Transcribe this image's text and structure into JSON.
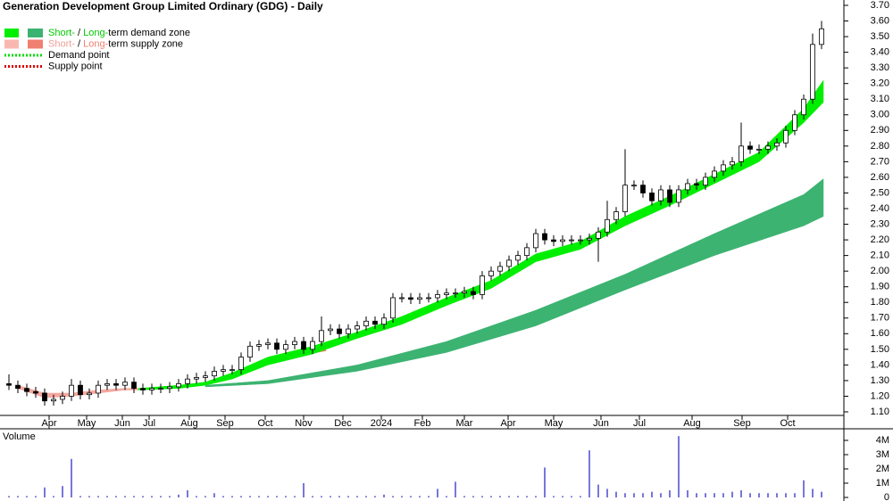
{
  "chart_data": [
    {
      "type": "candlestick",
      "title": "Generation Development Group Limited Ordinary (GDG) - Daily",
      "x": [
        1,
        2,
        3,
        4,
        5,
        6,
        7,
        8,
        9,
        10,
        11,
        12,
        13,
        14,
        15,
        16,
        17,
        18,
        19,
        20,
        21,
        22,
        23,
        24,
        25,
        26,
        27,
        28,
        29,
        30,
        31,
        32,
        33,
        34,
        35,
        36,
        37,
        38,
        39,
        40,
        41,
        42,
        43,
        44,
        45,
        46,
        47,
        48,
        49,
        50,
        51,
        52,
        53,
        54,
        55,
        56,
        57,
        58,
        59,
        60,
        61,
        62,
        63,
        64,
        65,
        66,
        67,
        68,
        69,
        70,
        71,
        72,
        73,
        74,
        75,
        76,
        77,
        78,
        79,
        80,
        81,
        82,
        83,
        84,
        85,
        86,
        87,
        88,
        89,
        90,
        91,
        92
      ],
      "open": [
        1.28,
        1.27,
        1.25,
        1.23,
        1.22,
        1.17,
        1.18,
        1.2,
        1.27,
        1.21,
        1.22,
        1.27,
        1.28,
        1.27,
        1.29,
        1.25,
        1.24,
        1.25,
        1.25,
        1.26,
        1.28,
        1.31,
        1.32,
        1.33,
        1.36,
        1.37,
        1.37,
        1.45,
        1.52,
        1.53,
        1.54,
        1.5,
        1.53,
        1.55,
        1.5,
        1.55,
        1.62,
        1.63,
        1.6,
        1.63,
        1.65,
        1.68,
        1.66,
        1.7,
        1.83,
        1.83,
        1.82,
        1.83,
        1.83,
        1.85,
        1.86,
        1.86,
        1.87,
        1.85,
        1.97,
        2.0,
        2.03,
        2.07,
        2.1,
        2.15,
        2.24,
        2.2,
        2.19,
        2.2,
        2.2,
        2.2,
        2.21,
        2.25,
        2.33,
        2.38,
        2.55,
        2.55,
        2.5,
        2.45,
        2.52,
        2.44,
        2.52,
        2.56,
        2.55,
        2.6,
        2.64,
        2.68,
        2.7,
        2.8,
        2.78,
        2.78,
        2.8,
        2.82,
        2.9,
        3.0,
        3.1,
        3.45
      ],
      "high": [
        1.34,
        1.3,
        1.28,
        1.26,
        1.25,
        1.21,
        1.23,
        1.31,
        1.3,
        1.25,
        1.3,
        1.31,
        1.31,
        1.32,
        1.32,
        1.28,
        1.28,
        1.28,
        1.29,
        1.31,
        1.34,
        1.35,
        1.36,
        1.39,
        1.4,
        1.4,
        1.48,
        1.55,
        1.56,
        1.57,
        1.57,
        1.56,
        1.58,
        1.58,
        1.58,
        1.71,
        1.66,
        1.66,
        1.66,
        1.68,
        1.71,
        1.71,
        1.73,
        1.86,
        1.86,
        1.86,
        1.86,
        1.86,
        1.88,
        1.89,
        1.89,
        1.9,
        1.9,
        2.0,
        2.03,
        2.06,
        2.1,
        2.13,
        2.18,
        2.27,
        2.27,
        2.23,
        2.23,
        2.23,
        2.23,
        2.24,
        2.28,
        2.45,
        2.41,
        2.78,
        2.58,
        2.58,
        2.53,
        2.55,
        2.55,
        2.55,
        2.59,
        2.59,
        2.63,
        2.67,
        2.71,
        2.73,
        2.95,
        2.83,
        2.81,
        2.83,
        2.85,
        2.93,
        3.03,
        3.13,
        3.52,
        3.6
      ],
      "low": [
        1.24,
        1.22,
        1.2,
        1.19,
        1.14,
        1.14,
        1.15,
        1.17,
        1.18,
        1.18,
        1.19,
        1.24,
        1.24,
        1.24,
        1.22,
        1.21,
        1.21,
        1.22,
        1.22,
        1.23,
        1.25,
        1.28,
        1.29,
        1.3,
        1.33,
        1.34,
        1.34,
        1.42,
        1.49,
        1.5,
        1.47,
        1.47,
        1.5,
        1.47,
        1.47,
        1.52,
        1.59,
        1.57,
        1.57,
        1.6,
        1.62,
        1.63,
        1.63,
        1.67,
        1.8,
        1.79,
        1.79,
        1.8,
        1.8,
        1.82,
        1.83,
        1.83,
        1.82,
        1.82,
        1.94,
        1.97,
        2.0,
        2.04,
        2.07,
        2.12,
        2.17,
        2.16,
        2.16,
        2.17,
        2.17,
        2.17,
        2.06,
        2.22,
        2.3,
        2.35,
        2.52,
        2.47,
        2.42,
        2.42,
        2.41,
        2.41,
        2.49,
        2.52,
        2.52,
        2.57,
        2.61,
        2.65,
        2.67,
        2.75,
        2.75,
        2.75,
        2.77,
        2.79,
        2.87,
        2.97,
        3.07,
        3.42
      ],
      "close": [
        1.27,
        1.25,
        1.23,
        1.22,
        1.17,
        1.18,
        1.2,
        1.27,
        1.21,
        1.22,
        1.27,
        1.28,
        1.27,
        1.29,
        1.25,
        1.24,
        1.25,
        1.25,
        1.26,
        1.28,
        1.31,
        1.32,
        1.33,
        1.36,
        1.37,
        1.37,
        1.45,
        1.52,
        1.53,
        1.54,
        1.5,
        1.53,
        1.55,
        1.5,
        1.55,
        1.62,
        1.63,
        1.6,
        1.63,
        1.65,
        1.68,
        1.66,
        1.7,
        1.83,
        1.83,
        1.82,
        1.83,
        1.83,
        1.85,
        1.86,
        1.86,
        1.87,
        1.85,
        1.97,
        2.0,
        2.03,
        2.07,
        2.1,
        2.15,
        2.24,
        2.2,
        2.19,
        2.2,
        2.2,
        2.2,
        2.21,
        2.25,
        2.33,
        2.38,
        2.55,
        2.55,
        2.5,
        2.45,
        2.52,
        2.44,
        2.52,
        2.56,
        2.55,
        2.6,
        2.64,
        2.68,
        2.7,
        2.8,
        2.78,
        2.78,
        2.8,
        2.82,
        2.9,
        3.0,
        3.1,
        3.45,
        3.55
      ],
      "up_color": "#ffffff",
      "down_color": "#000000",
      "bands": [
        {
          "color": "#f4a8a0",
          "x": [
            2,
            5,
            8,
            11,
            14,
            15.5
          ],
          "lower": [
            1.25,
            1.19,
            1.2,
            1.22,
            1.24,
            1.24
          ],
          "upper": [
            1.27,
            1.22,
            1.22,
            1.24,
            1.25,
            1.25
          ]
        },
        {
          "color": "#f08060",
          "x": [
            34.5,
            35.5,
            36.5
          ],
          "lower": [
            1.47,
            1.48,
            1.49
          ],
          "upper": [
            1.5,
            1.51,
            1.52
          ]
        },
        {
          "color": "#3cb371",
          "x": [
            23,
            30,
            40,
            50,
            60,
            70,
            80,
            90,
            92.2
          ],
          "lower": [
            1.26,
            1.28,
            1.36,
            1.48,
            1.65,
            1.88,
            2.1,
            2.29,
            2.35
          ],
          "upper": [
            1.27,
            1.3,
            1.4,
            1.55,
            1.75,
            1.98,
            2.24,
            2.49,
            2.59
          ]
        },
        {
          "color": "#00ee00",
          "x": [
            15.5,
            20,
            23,
            26,
            30,
            35,
            40,
            45,
            50,
            55,
            60,
            65,
            70,
            75,
            80,
            85,
            90,
            92.2
          ],
          "lower": [
            1.24,
            1.25,
            1.27,
            1.31,
            1.4,
            1.47,
            1.57,
            1.66,
            1.78,
            1.89,
            2.06,
            2.14,
            2.29,
            2.42,
            2.56,
            2.7,
            2.95,
            3.08
          ],
          "upper": [
            1.25,
            1.27,
            1.29,
            1.35,
            1.45,
            1.52,
            1.61,
            1.71,
            1.83,
            1.94,
            2.11,
            2.19,
            2.35,
            2.48,
            2.62,
            2.76,
            3.04,
            3.22
          ]
        }
      ],
      "legend": [
        {
          "colors": [
            "#00ee00",
            "#3cb371"
          ],
          "parts": [
            "Short-",
            " / ",
            "Long-",
            "term demand zone"
          ],
          "part_colors": [
            "#00cc00",
            "#000000",
            "#00cc00",
            "#000000"
          ]
        },
        {
          "colors": [
            "#f8b8b0",
            "#f08070"
          ],
          "parts": [
            "Short-",
            " / ",
            "Long-",
            "term supply zone"
          ],
          "part_colors": [
            "#f0a098",
            "#000000",
            "#f08070",
            "#000000"
          ]
        },
        {
          "line_color": "#00dd00",
          "parts": [
            "Demand point"
          ],
          "part_colors": [
            "#000000"
          ]
        },
        {
          "line_color": "#dd0000",
          "parts": [
            "Supply point"
          ],
          "part_colors": [
            "#000000"
          ]
        }
      ],
      "xlim": [
        0,
        94
      ],
      "xticks": [
        {
          "value": 5.5,
          "label": "Apr"
        },
        {
          "value": 9.7,
          "label": "May"
        },
        {
          "value": 13.7,
          "label": "Jun"
        },
        {
          "value": 16.7,
          "label": "Jul"
        },
        {
          "value": 21.2,
          "label": "Aug"
        },
        {
          "value": 25.2,
          "label": "Sep"
        },
        {
          "value": 29.7,
          "label": "Oct"
        },
        {
          "value": 34,
          "label": "Nov"
        },
        {
          "value": 38.4,
          "label": "Dec"
        },
        {
          "value": 42.7,
          "label": "2024"
        },
        {
          "value": 47.3,
          "label": "Feb"
        },
        {
          "value": 52,
          "label": "Mar"
        },
        {
          "value": 56.9,
          "label": "Apr"
        },
        {
          "value": 62,
          "label": "May"
        },
        {
          "value": 67.3,
          "label": "Jun"
        },
        {
          "value": 71.6,
          "label": "Jul"
        },
        {
          "value": 77.5,
          "label": "Aug"
        },
        {
          "value": 83.1,
          "label": "Sep"
        },
        {
          "value": 88.2,
          "label": "Oct"
        }
      ],
      "ylim": [
        1.1,
        3.7
      ],
      "yticks": [
        {
          "value": 1.1,
          "label": "1.10"
        },
        {
          "value": 1.2,
          "label": "1.20"
        },
        {
          "value": 1.3,
          "label": "1.30"
        },
        {
          "value": 1.4,
          "label": "1.40"
        },
        {
          "value": 1.5,
          "label": "1.50"
        },
        {
          "value": 1.6,
          "label": "1.60"
        },
        {
          "value": 1.7,
          "label": "1.70"
        },
        {
          "value": 1.8,
          "label": "1.80"
        },
        {
          "value": 1.9,
          "label": "1.90"
        },
        {
          "value": 2.0,
          "label": "2.00"
        },
        {
          "value": 2.1,
          "label": "2.10"
        },
        {
          "value": 2.2,
          "label": "2.20"
        },
        {
          "value": 2.3,
          "label": "2.30"
        },
        {
          "value": 2.4,
          "label": "2.40"
        },
        {
          "value": 2.5,
          "label": "2.50"
        },
        {
          "value": 2.6,
          "label": "2.60"
        },
        {
          "value": 2.7,
          "label": "2.70"
        },
        {
          "value": 2.8,
          "label": "2.80"
        },
        {
          "value": 2.9,
          "label": "2.90"
        },
        {
          "value": 3.0,
          "label": "3.00"
        },
        {
          "value": 3.1,
          "label": "3.10"
        },
        {
          "value": 3.2,
          "label": "3.20"
        },
        {
          "value": 3.3,
          "label": "3.30"
        },
        {
          "value": 3.4,
          "label": "3.40"
        },
        {
          "value": 3.5,
          "label": "3.50"
        },
        {
          "value": 3.6,
          "label": "3.60"
        },
        {
          "value": 3.7,
          "label": "3.70"
        }
      ]
    },
    {
      "type": "bar",
      "title": "Volume",
      "title_color": "#552288",
      "color": "#4a4ad0",
      "x": [
        1,
        2,
        3,
        4,
        5,
        6,
        7,
        8,
        9,
        10,
        11,
        12,
        13,
        14,
        15,
        16,
        17,
        18,
        19,
        20,
        21,
        22,
        23,
        24,
        25,
        26,
        27,
        28,
        29,
        30,
        31,
        32,
        33,
        34,
        35,
        36,
        37,
        38,
        39,
        40,
        41,
        42,
        43,
        44,
        45,
        46,
        47,
        48,
        49,
        50,
        51,
        52,
        53,
        54,
        55,
        56,
        57,
        58,
        59,
        60,
        61,
        62,
        63,
        64,
        65,
        66,
        67,
        68,
        69,
        70,
        71,
        72,
        73,
        74,
        75,
        76,
        77,
        78,
        79,
        80,
        81,
        82,
        83,
        84,
        85,
        86,
        87,
        88,
        89,
        90,
        91,
        92
      ],
      "values": [
        0.1,
        0.1,
        0.1,
        0.1,
        0.7,
        0.1,
        0.8,
        2.7,
        0.1,
        0.1,
        0.1,
        0.1,
        0.1,
        0.1,
        0.1,
        0.1,
        0.1,
        0.1,
        0.1,
        0.2,
        0.5,
        0.1,
        0.1,
        0.3,
        0.1,
        0.1,
        0.1,
        0.1,
        0.1,
        0.1,
        0.1,
        0.1,
        0.1,
        1.0,
        0.1,
        0.1,
        0.1,
        0.1,
        0.1,
        0.1,
        0.1,
        0.1,
        0.2,
        0.1,
        0.1,
        0.1,
        0.1,
        0.1,
        0.6,
        0.1,
        1.1,
        0.1,
        0.1,
        0.1,
        0.1,
        0.1,
        0.1,
        0.1,
        0.1,
        0.1,
        2.1,
        0.1,
        0.1,
        0.1,
        0.1,
        3.3,
        0.9,
        0.6,
        0.4,
        0.3,
        0.3,
        0.3,
        0.4,
        0.3,
        0.5,
        4.3,
        0.5,
        0.3,
        0.3,
        0.3,
        0.3,
        0.4,
        0.5,
        0.3,
        0.3,
        0.3,
        0.3,
        0.3,
        0.3,
        1.2,
        0.6,
        0.4
      ],
      "xlim": [
        0,
        94
      ],
      "ylim": [
        0,
        4.75
      ],
      "yticks": [
        0,
        {
          "value": 1,
          "label": "1M"
        },
        {
          "value": 2,
          "label": "2M"
        },
        {
          "value": 3,
          "label": "3M"
        },
        {
          "value": 4,
          "label": "4M"
        }
      ]
    }
  ]
}
